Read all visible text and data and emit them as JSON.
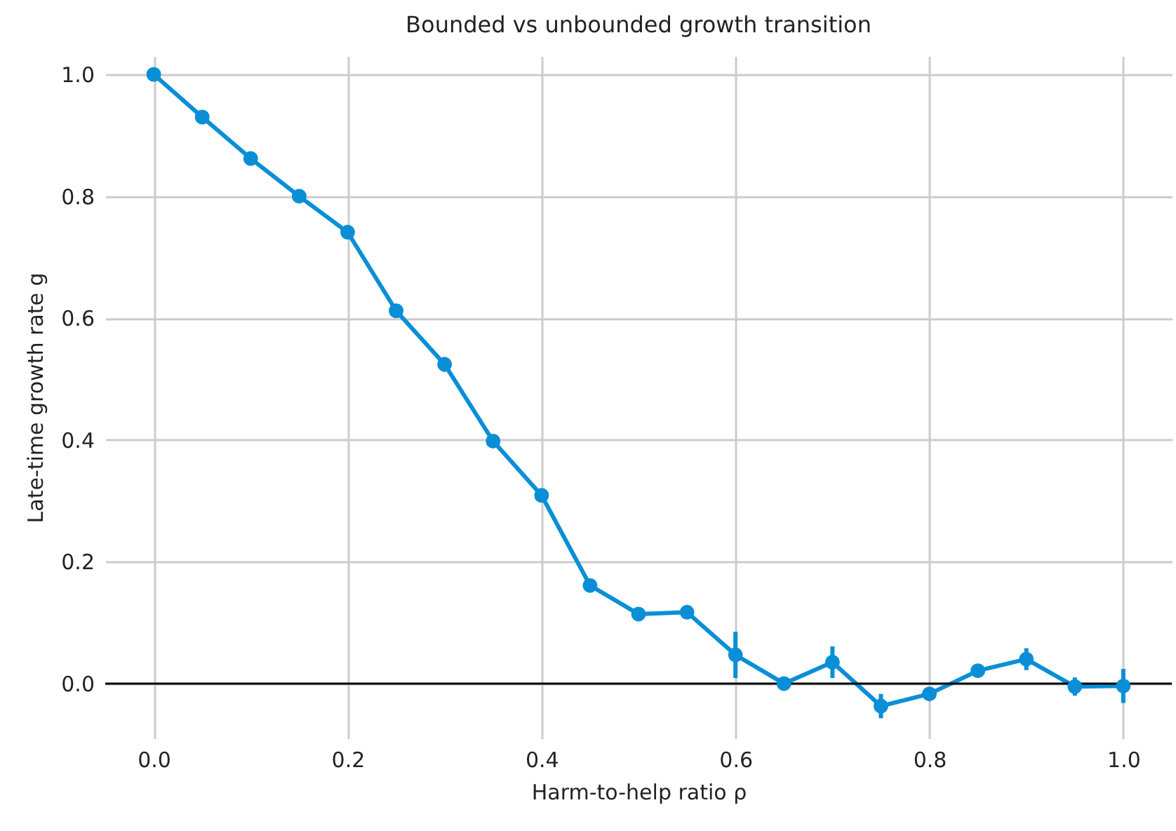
{
  "chart_data": {
    "type": "line",
    "title": "Bounded vs unbounded growth transition",
    "xlabel": "Harm-to-help ratio ρ",
    "ylabel": "Late-time growth rate g",
    "x": [
      0,
      0.05,
      0.1,
      0.15,
      0.2,
      0.25,
      0.3,
      0.35,
      0.4,
      0.45,
      0.5,
      0.55,
      0.6,
      0.65,
      0.7,
      0.75,
      0.8,
      0.85,
      0.9,
      0.95,
      1.0
    ],
    "series": [
      {
        "color": "#0a8fd6",
        "values": [
          1.0,
          0.93,
          0.862,
          0.8,
          0.741,
          0.612,
          0.524,
          0.398,
          0.309,
          0.161,
          0.114,
          0.117,
          0.047,
          0.0,
          0.035,
          -0.037,
          -0.017,
          0.021,
          0.04,
          -0.005,
          -0.004
        ],
        "errors": [
          null,
          null,
          null,
          null,
          null,
          null,
          0.012,
          null,
          null,
          null,
          null,
          null,
          0.038,
          null,
          0.026,
          0.02,
          0.008,
          null,
          0.018,
          0.015,
          0.028
        ]
      }
    ],
    "xlim": [
      -0.05,
      1.05
    ],
    "ylim": [
      -0.09,
      1.03
    ],
    "xticks": [
      {
        "value": 0,
        "label": "0.0"
      },
      {
        "value": 0.2,
        "label": "0.2"
      },
      {
        "value": 0.4,
        "label": "0.4"
      },
      {
        "value": 0.6,
        "label": "0.6"
      },
      {
        "value": 0.8,
        "label": "0.8"
      },
      {
        "value": 1,
        "label": "1.0"
      }
    ],
    "yticks": [
      {
        "value": 0,
        "label": "0.0"
      },
      0.2,
      0.4,
      0.6,
      0.8,
      {
        "value": 1,
        "label": "1.0"
      }
    ],
    "ref_lines": [
      {
        "axis": "y",
        "value": 0,
        "color": "#000000"
      }
    ],
    "grid": true,
    "marker": "circle",
    "line_style": "solid"
  }
}
